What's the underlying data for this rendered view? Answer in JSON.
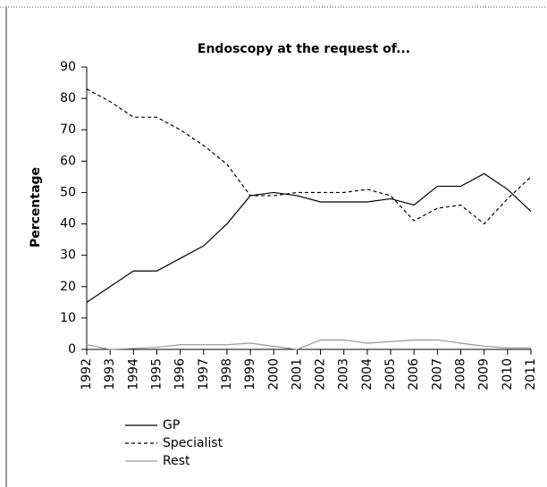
{
  "chart_data": {
    "type": "line",
    "title": "Endoscopy at the request of...",
    "ylabel": "Percentage",
    "categories": [
      "1992",
      "1993",
      "1994",
      "1995",
      "1996",
      "1997",
      "1998",
      "1999",
      "2000",
      "2001",
      "2002",
      "2003",
      "2004",
      "2005",
      "2006",
      "2007",
      "2008",
      "2009",
      "2010",
      "2011"
    ],
    "series": [
      {
        "name": "GP",
        "color": "#000000",
        "dashed": false,
        "values": [
          15,
          20,
          25,
          25,
          29,
          33,
          40,
          49,
          50,
          49,
          47,
          47,
          47,
          48,
          46,
          52,
          52,
          56,
          51,
          44
        ]
      },
      {
        "name": "Specialist",
        "color": "#000000",
        "dashed": true,
        "values": [
          83,
          79,
          74,
          74,
          70,
          65,
          59,
          49,
          49,
          50,
          50,
          50,
          51,
          49,
          41,
          45,
          46,
          40,
          48,
          55
        ]
      },
      {
        "name": "Rest",
        "color": "#999999",
        "dashed": false,
        "values": [
          1.5,
          0,
          0.3,
          0.7,
          1.5,
          1.5,
          1.5,
          2,
          1,
          0,
          3,
          3,
          2,
          2.5,
          3,
          3,
          2,
          1,
          0.5,
          0.5
        ]
      }
    ],
    "ylim": [
      0,
      90
    ],
    "yticks": [
      0,
      10,
      20,
      30,
      40,
      50,
      60,
      70,
      80,
      90
    ],
    "grid": false
  }
}
